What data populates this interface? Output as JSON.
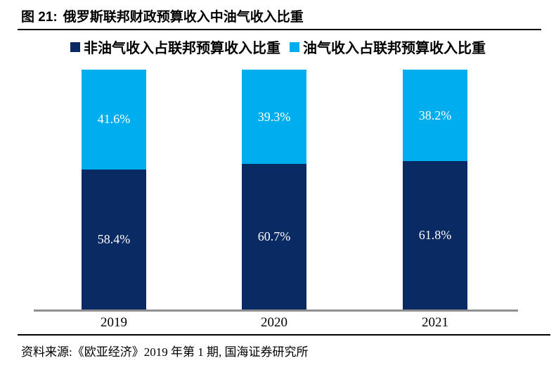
{
  "header": {
    "figure_label": "图 21:",
    "title": "俄罗斯联邦财政预算收入中油气收入比重"
  },
  "legend": {
    "items": [
      {
        "label": "非油气收入占联邦预算收入比重",
        "color": "#0A2A63"
      },
      {
        "label": "油气收入占联邦预算收入比重",
        "color": "#00AEEF"
      }
    ]
  },
  "chart_data": {
    "type": "bar",
    "stacked": true,
    "title": "俄罗斯联邦财政预算收入中油气收入比重",
    "categories": [
      "2019",
      "2020",
      "2021"
    ],
    "series": [
      {
        "name": "非油气收入占联邦预算收入比重",
        "color": "#0A2A63",
        "values": [
          58.4,
          60.7,
          61.8
        ],
        "labels": [
          "58.4%",
          "60.7%",
          "61.8%"
        ]
      },
      {
        "name": "油气收入占联邦预算收入比重",
        "color": "#00AEEF",
        "values": [
          41.6,
          39.3,
          38.2
        ],
        "labels": [
          "41.6%",
          "39.3%",
          "38.2%"
        ]
      }
    ],
    "xlabel": "",
    "ylabel": "",
    "ylim": [
      0,
      100
    ],
    "grid": false,
    "legend_position": "top",
    "value_label_color": "#FFFFFF",
    "axis_line_color": "#909090"
  },
  "footer": {
    "source": "资料来源:《欧亚经济》2019 年第 1 期, 国海证券研究所"
  }
}
